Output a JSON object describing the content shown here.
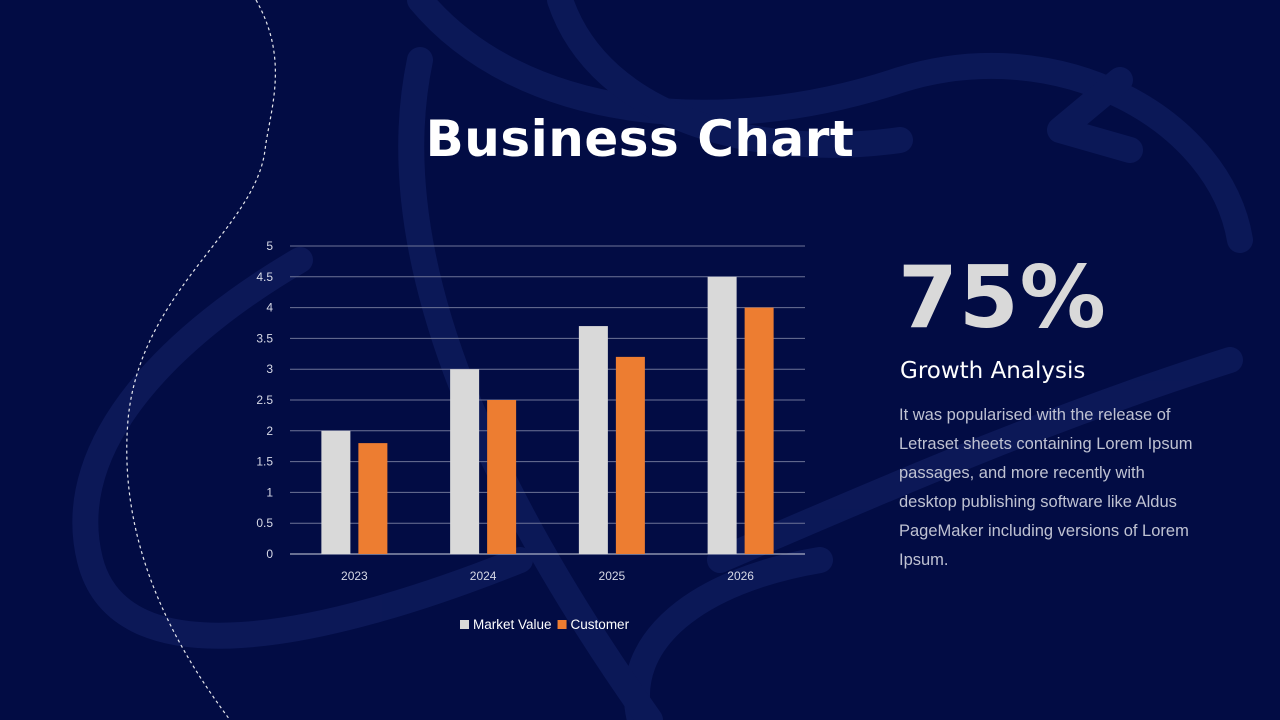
{
  "slide": {
    "title": "Business Chart"
  },
  "stat": {
    "value": "75%",
    "heading": "Growth Analysis",
    "body": "It was popularised  with the release of Letraset sheets containing Lorem Ipsum passages, and more recently with desktop publishing software like Aldus PageMaker including versions of Lorem Ipsum."
  },
  "colors": {
    "background": "#020c44",
    "market_value": "#d9d9d9",
    "customer": "#ed7d31"
  },
  "chart_data": {
    "type": "bar",
    "categories": [
      "2023",
      "2024",
      "2025",
      "2026"
    ],
    "series": [
      {
        "name": "Market Value",
        "values": [
          2,
          3,
          3.7,
          4.5
        ],
        "color": "#d9d9d9"
      },
      {
        "name": "Customer",
        "values": [
          1.8,
          2.5,
          3.2,
          4
        ],
        "color": "#ed7d31"
      }
    ],
    "yticks": [
      "0",
      "0.5",
      "1",
      "1.5",
      "2",
      "2.5",
      "3",
      "3.5",
      "4",
      "4.5",
      "5"
    ],
    "ylim": [
      0,
      5
    ],
    "grid": true,
    "legend": "bottom"
  }
}
